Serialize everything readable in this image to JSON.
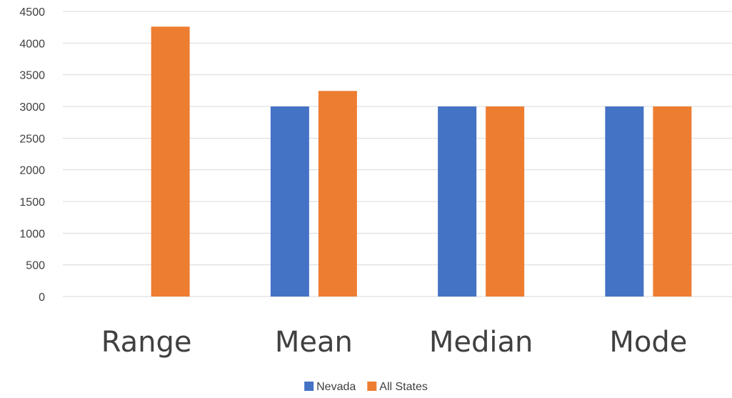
{
  "chart_data": {
    "type": "bar",
    "title": "",
    "xlabel": "",
    "ylabel": "",
    "categories": [
      "Range",
      "Mean",
      "Median",
      "Mode"
    ],
    "series": [
      {
        "name": "Nevada",
        "color": "#4472C4",
        "values": [
          0,
          3000,
          3000,
          3000
        ]
      },
      {
        "name": "All States",
        "color": "#ED7D31",
        "values": [
          4260,
          3245,
          3000,
          3000
        ]
      }
    ],
    "ylim": [
      0,
      4500
    ],
    "yticks": [
      "0",
      "500",
      "1000",
      "1500",
      "2000",
      "2500",
      "3000",
      "3500",
      "4000",
      "4500"
    ],
    "grid": true,
    "legend_position": "bottom"
  }
}
